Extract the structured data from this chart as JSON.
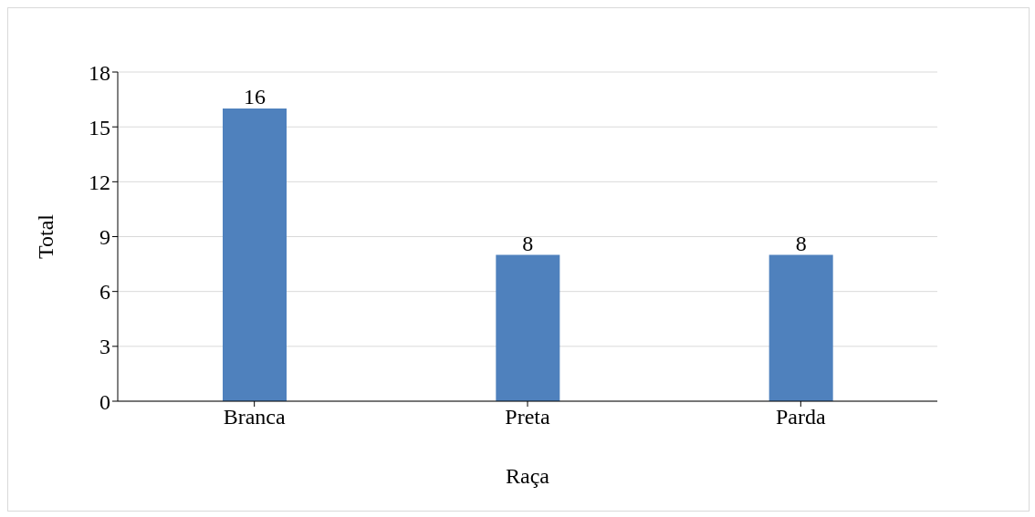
{
  "chart_data": {
    "type": "bar",
    "xlabel": "Raça",
    "ylabel": "Total",
    "categories": [
      "Branca",
      "Preta",
      "Parda"
    ],
    "values": [
      16,
      8,
      8
    ],
    "color": "#4f81bd",
    "ylim": [
      0,
      18
    ],
    "yticks": [
      0,
      3,
      6,
      9,
      12,
      15,
      18
    ],
    "grid": "y",
    "data_labels": true
  }
}
